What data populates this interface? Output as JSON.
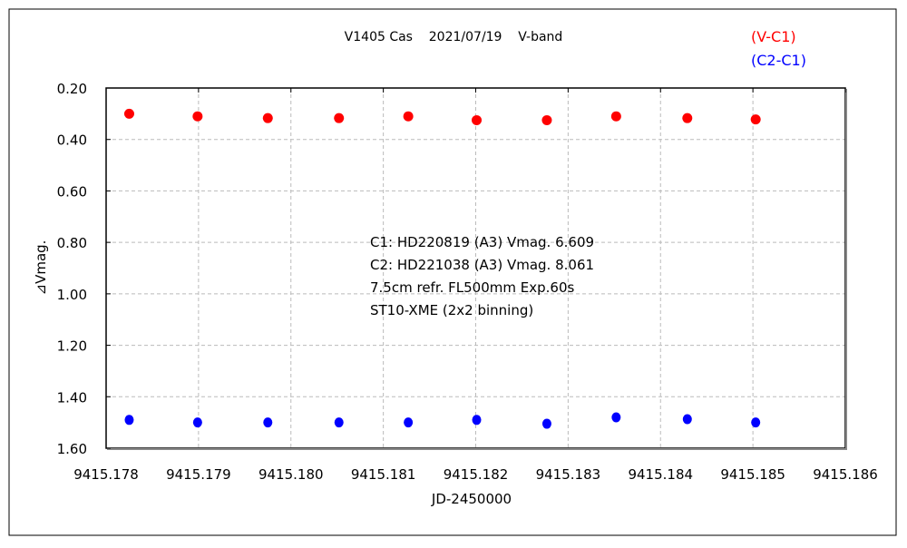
{
  "chart_data": {
    "type": "scatter",
    "title": "V1405 Cas    2021/07/19    V-band",
    "xlabel": "JD-2450000",
    "ylabel": "⊿Vmag.",
    "xlim": [
      9415.178,
      9415.186
    ],
    "ylim": [
      0.2,
      1.6
    ],
    "y_inverted": true,
    "grid": true,
    "x_ticks": [
      "9415.178",
      "9415.179",
      "9415.180",
      "9415.181",
      "9415.182",
      "9415.183",
      "9415.184",
      "9415.185",
      "9415.186"
    ],
    "y_ticks": [
      "0.20",
      "0.40",
      "0.60",
      "0.80",
      "1.00",
      "1.20",
      "1.40",
      "1.60"
    ],
    "legend_placement": "top-right",
    "x": [
      9415.17825,
      9415.17899,
      9415.17975,
      9415.18052,
      9415.18127,
      9415.18201,
      9415.18277,
      9415.18352,
      9415.18429,
      9415.18503
    ],
    "series": [
      {
        "name": "(V-C1)",
        "color": "#ff0000",
        "values": [
          0.3,
          0.31,
          0.317,
          0.317,
          0.31,
          0.325,
          0.325,
          0.31,
          0.317,
          0.322
        ]
      },
      {
        "name": "(C2-C1)",
        "color": "#0000ff",
        "values": [
          1.49,
          1.5,
          1.5,
          1.5,
          1.5,
          1.49,
          1.505,
          1.48,
          1.487,
          1.5
        ]
      }
    ],
    "annotations": [
      "C1: HD220819 (A3) Vmag. 6.609",
      "C2: HD221038 (A3) Vmag. 8.061",
      "7.5cm refr. FL500mm Exp.60s",
      "ST10-XME (2x2 binning)"
    ]
  }
}
